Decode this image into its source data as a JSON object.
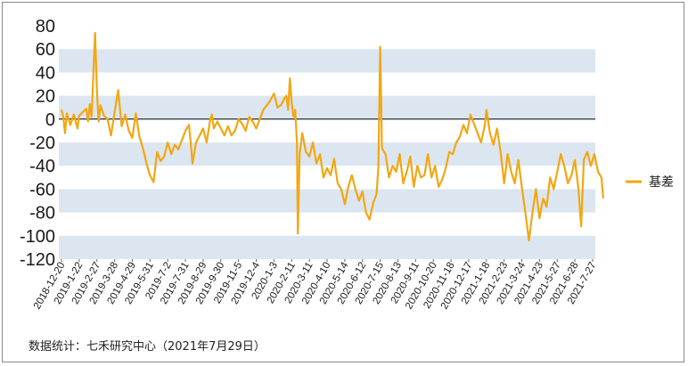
{
  "chart_data": {
    "type": "line",
    "title": "",
    "xlabel": "",
    "ylabel": "",
    "ylim": [
      -120,
      80
    ],
    "yticks": [
      80,
      60,
      40,
      20,
      0,
      -20,
      -40,
      -60,
      -80,
      -100,
      -120
    ],
    "grid": "alternating horizontal bands",
    "legend_position": "right",
    "series_color": "#F2A712",
    "band_color": "#DCE6F1",
    "x_tick_labels": [
      "2018-12-20",
      "2019-1-22",
      "2019-2-27",
      "2019-3-28",
      "2019-4-29",
      "2019-5-31",
      "2019-7-2",
      "2019-7-31",
      "2019-8-29",
      "2019-9-30",
      "2019-11-5",
      "2019-12-4",
      "2020-1-3",
      "2020-2-11",
      "2020-3-11",
      "2020-4-10",
      "2020-5-14",
      "2020-6-12",
      "2020-7-15",
      "2020-8-13",
      "2020-9-11",
      "2020-10-20",
      "2020-11-18",
      "2020-12-17",
      "2021-1-18",
      "2021-2-23",
      "2021-3-24",
      "2021-4-23",
      "2021-5-27",
      "2021-6-28",
      "2021-7-27"
    ],
    "series": [
      {
        "name": "基差",
        "points": [
          [
            0,
            8
          ],
          [
            0.1,
            2
          ],
          [
            0.2,
            -12
          ],
          [
            0.3,
            5
          ],
          [
            0.5,
            -5
          ],
          [
            0.7,
            4
          ],
          [
            0.9,
            -8
          ],
          [
            1.0,
            3
          ],
          [
            1.2,
            6
          ],
          [
            1.4,
            9
          ],
          [
            1.5,
            -2
          ],
          [
            1.6,
            13
          ],
          [
            1.7,
            2
          ],
          [
            1.8,
            40
          ],
          [
            1.9,
            74
          ],
          [
            2.0,
            25
          ],
          [
            2.1,
            -2
          ],
          [
            2.2,
            12
          ],
          [
            2.4,
            3
          ],
          [
            2.6,
            0
          ],
          [
            2.8,
            -14
          ],
          [
            3.0,
            6
          ],
          [
            3.2,
            25
          ],
          [
            3.4,
            -6
          ],
          [
            3.6,
            4
          ],
          [
            3.8,
            -10
          ],
          [
            4.0,
            -16
          ],
          [
            4.2,
            5
          ],
          [
            4.4,
            -15
          ],
          [
            4.6,
            -25
          ],
          [
            4.8,
            -38
          ],
          [
            5.0,
            -48
          ],
          [
            5.2,
            -54
          ],
          [
            5.4,
            -28
          ],
          [
            5.6,
            -36
          ],
          [
            5.8,
            -32
          ],
          [
            6.0,
            -20
          ],
          [
            6.2,
            -30
          ],
          [
            6.4,
            -22
          ],
          [
            6.6,
            -26
          ],
          [
            6.8,
            -18
          ],
          [
            7.0,
            -10
          ],
          [
            7.2,
            -5
          ],
          [
            7.3,
            -20
          ],
          [
            7.4,
            -38
          ],
          [
            7.6,
            -20
          ],
          [
            7.8,
            -14
          ],
          [
            8.0,
            -8
          ],
          [
            8.2,
            -20
          ],
          [
            8.4,
            0
          ],
          [
            8.5,
            4
          ],
          [
            8.6,
            -8
          ],
          [
            8.8,
            -2
          ],
          [
            9.0,
            -8
          ],
          [
            9.2,
            -14
          ],
          [
            9.4,
            -6
          ],
          [
            9.6,
            -14
          ],
          [
            9.8,
            -10
          ],
          [
            10.0,
            0
          ],
          [
            10.2,
            -4
          ],
          [
            10.4,
            -10
          ],
          [
            10.6,
            2
          ],
          [
            10.8,
            -2
          ],
          [
            11.0,
            -8
          ],
          [
            11.2,
            0
          ],
          [
            11.4,
            8
          ],
          [
            11.6,
            12
          ],
          [
            11.8,
            16
          ],
          [
            12.0,
            22
          ],
          [
            12.2,
            10
          ],
          [
            12.4,
            12
          ],
          [
            12.6,
            18
          ],
          [
            12.7,
            20
          ],
          [
            12.8,
            8
          ],
          [
            12.9,
            35
          ],
          [
            13.0,
            14
          ],
          [
            13.1,
            2
          ],
          [
            13.2,
            8
          ],
          [
            13.3,
            -20
          ],
          [
            13.35,
            -98
          ],
          [
            13.45,
            -30
          ],
          [
            13.6,
            -12
          ],
          [
            13.8,
            -28
          ],
          [
            14.0,
            -32
          ],
          [
            14.2,
            -20
          ],
          [
            14.4,
            -38
          ],
          [
            14.6,
            -30
          ],
          [
            14.8,
            -50
          ],
          [
            15.0,
            -42
          ],
          [
            15.2,
            -48
          ],
          [
            15.4,
            -34
          ],
          [
            15.6,
            -55
          ],
          [
            15.8,
            -60
          ],
          [
            16.0,
            -73
          ],
          [
            16.2,
            -58
          ],
          [
            16.4,
            -48
          ],
          [
            16.6,
            -60
          ],
          [
            16.8,
            -70
          ],
          [
            17.0,
            -62
          ],
          [
            17.2,
            -80
          ],
          [
            17.4,
            -86
          ],
          [
            17.6,
            -72
          ],
          [
            17.8,
            -64
          ],
          [
            17.9,
            -40
          ],
          [
            18.0,
            62
          ],
          [
            18.1,
            -25
          ],
          [
            18.3,
            -30
          ],
          [
            18.5,
            -50
          ],
          [
            18.7,
            -40
          ],
          [
            18.9,
            -45
          ],
          [
            19.1,
            -30
          ],
          [
            19.3,
            -55
          ],
          [
            19.5,
            -45
          ],
          [
            19.7,
            -32
          ],
          [
            19.9,
            -58
          ],
          [
            20.1,
            -40
          ],
          [
            20.3,
            -50
          ],
          [
            20.5,
            -48
          ],
          [
            20.7,
            -30
          ],
          [
            20.9,
            -50
          ],
          [
            21.1,
            -40
          ],
          [
            21.3,
            -58
          ],
          [
            21.5,
            -52
          ],
          [
            21.7,
            -42
          ],
          [
            21.9,
            -28
          ],
          [
            22.1,
            -30
          ],
          [
            22.3,
            -20
          ],
          [
            22.5,
            -15
          ],
          [
            22.7,
            -5
          ],
          [
            22.9,
            -12
          ],
          [
            23.1,
            4
          ],
          [
            23.3,
            -4
          ],
          [
            23.5,
            -12
          ],
          [
            23.7,
            -20
          ],
          [
            23.9,
            -6
          ],
          [
            24.0,
            8
          ],
          [
            24.2,
            -12
          ],
          [
            24.4,
            -22
          ],
          [
            24.6,
            -8
          ],
          [
            24.8,
            -28
          ],
          [
            25.0,
            -55
          ],
          [
            25.2,
            -30
          ],
          [
            25.4,
            -45
          ],
          [
            25.6,
            -55
          ],
          [
            25.8,
            -35
          ],
          [
            26.0,
            -58
          ],
          [
            26.2,
            -80
          ],
          [
            26.4,
            -104
          ],
          [
            26.6,
            -80
          ],
          [
            26.8,
            -60
          ],
          [
            27.0,
            -85
          ],
          [
            27.2,
            -68
          ],
          [
            27.4,
            -75
          ],
          [
            27.6,
            -50
          ],
          [
            27.8,
            -60
          ],
          [
            28.0,
            -45
          ],
          [
            28.2,
            -30
          ],
          [
            28.4,
            -40
          ],
          [
            28.6,
            -55
          ],
          [
            28.8,
            -48
          ],
          [
            29.0,
            -35
          ],
          [
            29.2,
            -60
          ],
          [
            29.35,
            -92
          ],
          [
            29.5,
            -35
          ],
          [
            29.7,
            -28
          ],
          [
            29.9,
            -40
          ],
          [
            30.1,
            -30
          ],
          [
            30.3,
            -45
          ],
          [
            30.5,
            -50
          ],
          [
            30.6,
            -68
          ]
        ]
      }
    ]
  },
  "footer": {
    "source": "数据统计：七禾研究中心（2021年7月29日）"
  }
}
